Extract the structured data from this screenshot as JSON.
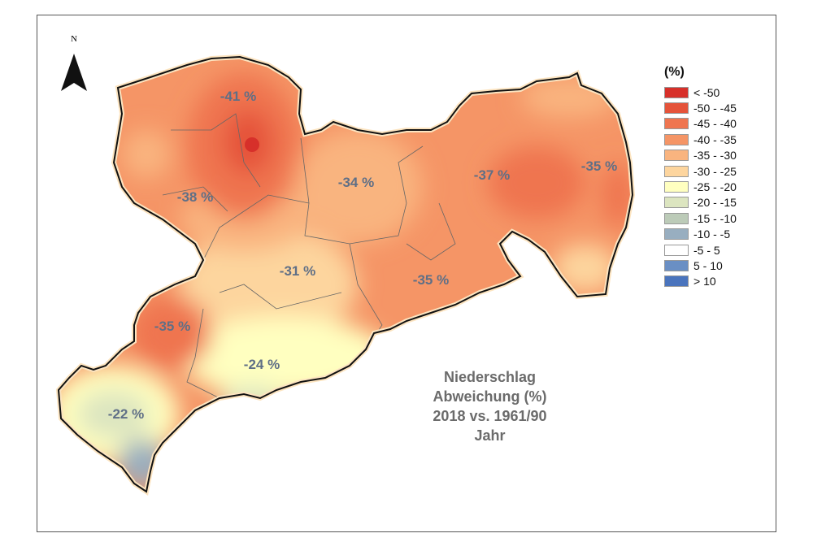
{
  "north_label": "N",
  "legend": {
    "title": "(%)",
    "items": [
      {
        "label": "< -50",
        "color": "#d7302a"
      },
      {
        "label": "-50 - -45",
        "color": "#e5533a"
      },
      {
        "label": "-45 - -40",
        "color": "#ef7550"
      },
      {
        "label": "-40 - -35",
        "color": "#f59566"
      },
      {
        "label": "-35 - -30",
        "color": "#f9b47f"
      },
      {
        "label": "-30 - -25",
        "color": "#fdd59e"
      },
      {
        "label": "-25 - -20",
        "color": "#ffffc0"
      },
      {
        "label": "-20 - -15",
        "color": "#dce5c0"
      },
      {
        "label": "-15 - -10",
        "color": "#bccbb8"
      },
      {
        "label": "-10 - -5",
        "color": "#98aec0"
      },
      {
        "label": "-5 - 5",
        "color": "#ffffff"
      },
      {
        "label": "5 - 10",
        "color": "#6a8fc4"
      },
      {
        "label": "> 10",
        "color": "#4a74bd"
      }
    ]
  },
  "title_lines": [
    "Niederschlag",
    "Abweichung (%)",
    "2018 vs. 1961/90",
    "Jahr"
  ],
  "region_labels": [
    "-41 %",
    "-38 %",
    "-34 %",
    "-37 %",
    "-35 %",
    "-31 %",
    "-35 %",
    "-35 %",
    "-24 %",
    "-22 %"
  ]
}
